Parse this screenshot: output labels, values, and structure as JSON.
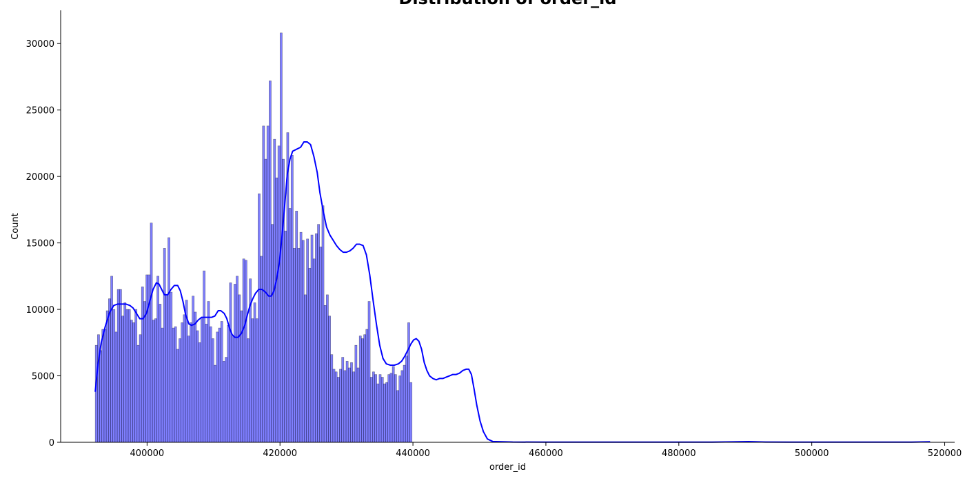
{
  "chart_data": {
    "type": "bar",
    "subtype": "histogram_with_kde",
    "title": "Distribution of order_id",
    "xlabel": "order_id",
    "ylabel": "Count",
    "xlim": [
      387000,
      521500
    ],
    "ylim": [
      0,
      32500
    ],
    "xticks": [
      400000,
      420000,
      440000,
      460000,
      480000,
      500000,
      520000
    ],
    "yticks": [
      0,
      5000,
      10000,
      15000,
      20000,
      25000,
      30000
    ],
    "bar_color": "#0000ff",
    "bar_opacity": 0.5,
    "bar_edge_color": "#000000",
    "kde_color": "#0000ff",
    "grid": false,
    "spines": "left-bottom",
    "bins": {
      "start": 392200,
      "width": 331,
      "counts": [
        7300,
        8100,
        6900,
        8500,
        8500,
        9900,
        10800,
        12500,
        10000,
        8300,
        11500,
        11500,
        9500,
        10500,
        10000,
        10000,
        9200,
        9000,
        10000,
        7300,
        8100,
        11700,
        10600,
        12600,
        12600,
        16500,
        9200,
        9300,
        12500,
        10400,
        8600,
        14600,
        11100,
        15400,
        11300,
        8600,
        8700,
        7000,
        7800,
        9000,
        9600,
        10700,
        8000,
        9000,
        11000,
        9800,
        8400,
        7500,
        9400,
        12900,
        8900,
        10600,
        8700,
        7800,
        5800,
        8300,
        8600,
        9100,
        6100,
        6400,
        8800,
        12000,
        8000,
        11900,
        12500,
        11100,
        9900,
        13800,
        13700,
        7800,
        12300,
        9300,
        10500,
        9300,
        18700,
        14000,
        23800,
        21300,
        23800,
        27200,
        16400,
        22800,
        19900,
        22300,
        30800,
        21300,
        15900,
        23300,
        17600,
        21600,
        14600,
        17400,
        14600,
        15800,
        15200,
        11100,
        15300,
        13100,
        15600,
        13800,
        15700,
        16400,
        14700,
        17800,
        10300,
        11100,
        9500,
        6600,
        5500,
        5300,
        4900,
        5500,
        6400,
        5400,
        6100,
        5600,
        6000,
        5300,
        7300,
        5600,
        8000,
        7800,
        8100,
        8500,
        10600,
        4900,
        5300,
        5100,
        4400,
        5100,
        4900,
        4400,
        4500,
        5100,
        5200,
        5700,
        5100,
        3900,
        5000,
        5400,
        5800,
        6500,
        9000,
        4500
      ]
    },
    "kde": {
      "x": [
        392200,
        392600,
        393100,
        393700,
        394400,
        395000,
        395600,
        396200,
        396800,
        397400,
        397900,
        398400,
        398900,
        399400,
        399900,
        400400,
        400900,
        401400,
        401800,
        402200,
        402600,
        403100,
        403600,
        404100,
        404600,
        405000,
        405400,
        405800,
        406300,
        406700,
        407200,
        407700,
        408200,
        408700,
        409200,
        409700,
        410200,
        410700,
        411100,
        411600,
        412000,
        412400,
        412800,
        413200,
        413700,
        414200,
        414700,
        415100,
        415500,
        415900,
        416300,
        416800,
        417300,
        417800,
        418300,
        418700,
        419100,
        419500,
        419900,
        420300,
        420700,
        421100,
        421500,
        421900,
        422300,
        422700,
        423100,
        423600,
        424100,
        424600,
        425100,
        425600,
        426000,
        426500,
        427000,
        427500,
        428000,
        428500,
        429000,
        429500,
        430000,
        430500,
        431000,
        431500,
        432000,
        432500,
        433000,
        433500,
        434000,
        434500,
        435000,
        435500,
        436000,
        436600,
        437200,
        437800,
        438300,
        438800,
        439300,
        439700,
        440100,
        440500,
        440900,
        441300,
        441700,
        442100,
        442500,
        443000,
        443500,
        444000,
        444500,
        445000,
        445500,
        446000,
        446500,
        447000,
        447500,
        448000,
        448400,
        448800,
        449200,
        449600,
        450100,
        450600,
        451200,
        452000,
        455000,
        460000,
        470000,
        480000,
        485000,
        488000,
        490500,
        493000,
        500000,
        510000,
        515000,
        517800
      ],
      "y": [
        3800,
        5800,
        7500,
        8700,
        9800,
        10300,
        10400,
        10400,
        10400,
        10300,
        10100,
        9700,
        9300,
        9300,
        9700,
        10600,
        11500,
        12000,
        11900,
        11500,
        11100,
        11100,
        11500,
        11800,
        11800,
        11400,
        10600,
        9600,
        8900,
        8800,
        8900,
        9200,
        9400,
        9400,
        9400,
        9400,
        9500,
        9900,
        9900,
        9700,
        9300,
        8600,
        8100,
        7900,
        7900,
        8200,
        8800,
        9600,
        10300,
        10800,
        11200,
        11500,
        11500,
        11300,
        11000,
        11000,
        11400,
        12300,
        13500,
        15500,
        17800,
        20200,
        21300,
        21900,
        22000,
        22100,
        22200,
        22600,
        22600,
        22400,
        21500,
        20300,
        18800,
        17400,
        16200,
        15600,
        15200,
        14800,
        14500,
        14300,
        14300,
        14400,
        14600,
        14900,
        14900,
        14800,
        14100,
        12600,
        10700,
        8900,
        7300,
        6300,
        5900,
        5800,
        5800,
        5900,
        6100,
        6500,
        7000,
        7400,
        7700,
        7800,
        7600,
        7000,
        6000,
        5400,
        5000,
        4800,
        4700,
        4800,
        4800,
        4900,
        5000,
        5100,
        5100,
        5200,
        5400,
        5500,
        5500,
        5100,
        4000,
        2800,
        1600,
        800,
        250,
        60,
        20,
        10,
        10,
        10,
        15,
        30,
        50,
        20,
        10,
        10,
        15,
        40
      ]
    }
  }
}
